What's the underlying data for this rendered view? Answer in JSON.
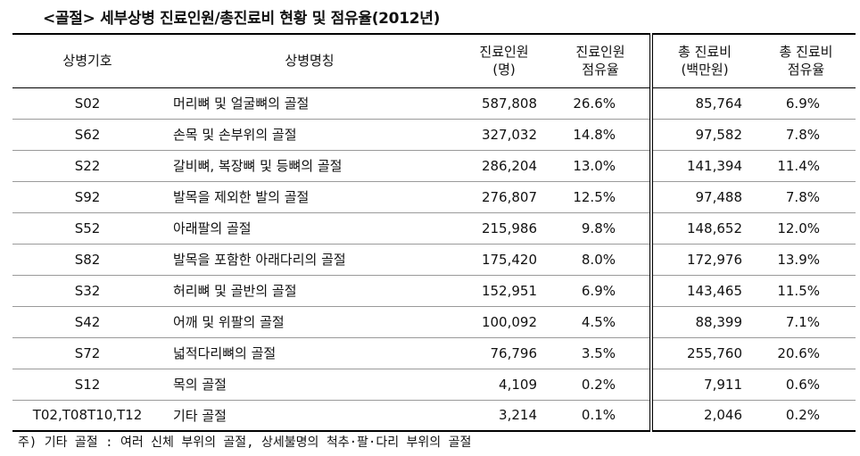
{
  "title": "<골절> 세부상병 진료인원/총진료비 현황 및 점유율(2012년)",
  "headers": {
    "code": "상병기호",
    "name": "상병명칭",
    "patients_l1": "진료인원",
    "patients_l2": "(명)",
    "patients_share_l1": "진료인원",
    "patients_share_l2": "점유율",
    "cost_l1": "총 진료비",
    "cost_l2": "(백만원)",
    "cost_share_l1": "총 진료비",
    "cost_share_l2": "점유율"
  },
  "rows": [
    {
      "code": "S02",
      "name": "머리뼈 및 얼굴뼈의 골절",
      "patients": "587,808",
      "patients_share": "26.6%",
      "cost": "85,764",
      "cost_share": "6.9%"
    },
    {
      "code": "S62",
      "name": "손목 및 손부위의 골절",
      "patients": "327,032",
      "patients_share": "14.8%",
      "cost": "97,582",
      "cost_share": "7.8%"
    },
    {
      "code": "S22",
      "name": "갈비뼈, 복장뼈 및 등뼈의 골절",
      "patients": "286,204",
      "patients_share": "13.0%",
      "cost": "141,394",
      "cost_share": "11.4%"
    },
    {
      "code": "S92",
      "name": "발목을 제외한 발의 골절",
      "patients": "276,807",
      "patients_share": "12.5%",
      "cost": "97,488",
      "cost_share": "7.8%"
    },
    {
      "code": "S52",
      "name": "아래팔의 골절",
      "patients": "215,986",
      "patients_share": "9.8%",
      "cost": "148,652",
      "cost_share": "12.0%"
    },
    {
      "code": "S82",
      "name": "발목을 포함한 아래다리의 골절",
      "patients": "175,420",
      "patients_share": "8.0%",
      "cost": "172,976",
      "cost_share": "13.9%"
    },
    {
      "code": "S32",
      "name": "허리뼈 및 골반의 골절",
      "patients": "152,951",
      "patients_share": "6.9%",
      "cost": "143,465",
      "cost_share": "11.5%"
    },
    {
      "code": "S42",
      "name": "어깨 및 위팔의 골절",
      "patients": "100,092",
      "patients_share": "4.5%",
      "cost": "88,399",
      "cost_share": "7.1%"
    },
    {
      "code": "S72",
      "name": "넓적다리뼈의 골절",
      "patients": "76,796",
      "patients_share": "3.5%",
      "cost": "255,760",
      "cost_share": "20.6%"
    },
    {
      "code": "S12",
      "name": "목의 골절",
      "patients": "4,109",
      "patients_share": "0.2%",
      "cost": "7,911",
      "cost_share": "0.6%"
    },
    {
      "code": "T02,T08T10,T12",
      "name": "기타 골절",
      "patients": "3,214",
      "patients_share": "0.1%",
      "cost": "2,046",
      "cost_share": "0.2%"
    }
  ],
  "note": "주) 기타 골절 : 여러 신체 부위의 골절, 상세불명의 척추·팔·다리 부위의 골절"
}
